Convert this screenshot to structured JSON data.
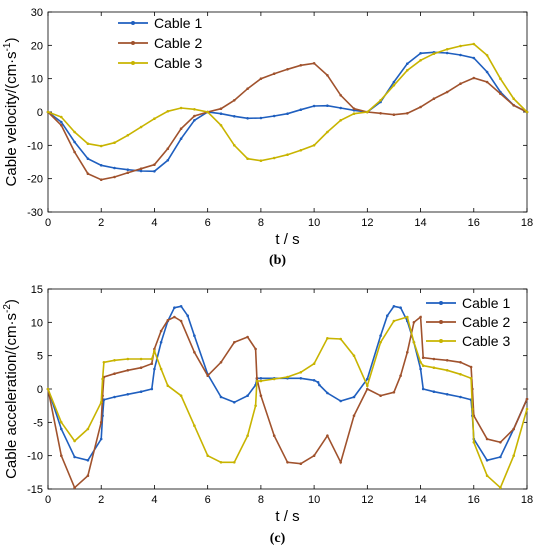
{
  "colors": {
    "cable1": "#1f5fbf",
    "cable2": "#a0522d",
    "cable3": "#c8b400"
  },
  "chart_data": [
    {
      "type": "line",
      "caption": "(b)",
      "xlabel": "t / s",
      "ylabel": "Cable velocity/(cm·s",
      "ylabel_sup": "-1",
      "ylabel_tail": ")",
      "xlim": [
        0,
        18
      ],
      "ylim": [
        -30,
        30
      ],
      "xticks": [
        0,
        2,
        4,
        6,
        8,
        10,
        12,
        14,
        16,
        18
      ],
      "yticks": [
        -30,
        -20,
        -10,
        0,
        10,
        20,
        30
      ],
      "legend_position": "top-left",
      "series": [
        {
          "name": "Cable 1",
          "color_key": "cable1",
          "x": [
            0,
            0.5,
            1,
            1.5,
            2,
            2.5,
            3,
            3.5,
            4,
            4.5,
            5,
            5.5,
            6,
            6.5,
            7,
            7.5,
            8,
            8.5,
            9,
            9.5,
            10,
            10.5,
            11,
            11.5,
            12,
            12.5,
            13,
            13.5,
            14,
            14.5,
            15,
            15.5,
            16,
            16.5,
            17,
            17.5,
            18
          ],
          "y": [
            0,
            -3,
            -9,
            -14,
            -16,
            -16.8,
            -17.3,
            -17.7,
            -17.8,
            -14.5,
            -8,
            -2.5,
            0,
            -0.5,
            -1.3,
            -1.9,
            -1.8,
            -1.2,
            -0.5,
            0.7,
            1.8,
            1.9,
            1.2,
            0.5,
            0,
            3,
            9,
            14.5,
            17.6,
            17.9,
            17.7,
            17.1,
            16.2,
            12,
            6,
            2,
            0
          ]
        },
        {
          "name": "Cable 2",
          "color_key": "cable2",
          "x": [
            0,
            0.5,
            1,
            1.5,
            2,
            2.5,
            3,
            3.5,
            4,
            4.5,
            5,
            5.5,
            6,
            6.5,
            7,
            7.5,
            8,
            8.5,
            9,
            9.5,
            10,
            10.5,
            11,
            11.5,
            12,
            12.5,
            13,
            13.5,
            14,
            14.5,
            15,
            15.5,
            16,
            16.5,
            17,
            17.5,
            18
          ],
          "y": [
            0,
            -4,
            -12,
            -18.5,
            -20.3,
            -19.5,
            -18.2,
            -17,
            -15.8,
            -11,
            -5,
            -1.2,
            0,
            1,
            3.5,
            7,
            10,
            11.5,
            12.8,
            14,
            14.6,
            11,
            5,
            1,
            0,
            -0.4,
            -0.8,
            -0.4,
            1.5,
            4,
            6,
            8.5,
            10.2,
            9,
            5.5,
            2,
            0
          ]
        },
        {
          "name": "Cable 3",
          "color_key": "cable3",
          "x": [
            0,
            0.5,
            1,
            1.5,
            2,
            2.5,
            3,
            3.5,
            4,
            4.5,
            5,
            5.5,
            6,
            6.5,
            7,
            7.5,
            8,
            8.5,
            9,
            9.5,
            10,
            10.5,
            11,
            11.5,
            12,
            12.5,
            13,
            13.5,
            14,
            14.5,
            15,
            15.5,
            16,
            16.5,
            17,
            17.5,
            18
          ],
          "y": [
            0,
            -1.5,
            -6,
            -9.5,
            -10.2,
            -9.2,
            -7,
            -4.5,
            -2,
            0.2,
            1.2,
            0.8,
            0,
            -4,
            -10,
            -14,
            -14.6,
            -13.8,
            -12.8,
            -11.5,
            -10,
            -6,
            -2.5,
            -0.5,
            0,
            3.5,
            8,
            12.5,
            15.5,
            17.5,
            18.8,
            19.8,
            20.4,
            17,
            10,
            4,
            0
          ]
        }
      ]
    },
    {
      "type": "line",
      "caption": "(c)",
      "xlabel": "t / s",
      "ylabel": "Cable acceleration/(cm·s",
      "ylabel_sup": "-2",
      "ylabel_tail": ")",
      "xlim": [
        0,
        18
      ],
      "ylim": [
        -15,
        15
      ],
      "xticks": [
        0,
        2,
        4,
        6,
        8,
        10,
        12,
        14,
        16,
        18
      ],
      "yticks": [
        -15,
        -10,
        -5,
        0,
        5,
        10,
        15
      ],
      "legend_position": "top-right",
      "series": [
        {
          "name": "Cable 1",
          "color_key": "cable1",
          "x": [
            0,
            0.5,
            1,
            1.5,
            2,
            2.05,
            2.1,
            2.5,
            3,
            3.5,
            3.9,
            4,
            4.25,
            4.5,
            4.75,
            5,
            5.25,
            5.5,
            6,
            6.5,
            7,
            7.5,
            7.8,
            7.85,
            8,
            8.5,
            9,
            9.5,
            10,
            10.15,
            10.2,
            10.5,
            11,
            11.5,
            12,
            12.5,
            12.75,
            13,
            13.25,
            13.5,
            13.75,
            14,
            14.1,
            14.5,
            15,
            15.5,
            15.9,
            15.95,
            16,
            16.5,
            17,
            17.5,
            18
          ],
          "y": [
            0,
            -6,
            -10.2,
            -10.7,
            -7.5,
            -4,
            -1.6,
            -1.2,
            -0.8,
            -0.4,
            0,
            3,
            7,
            10.2,
            12.2,
            12.4,
            11,
            8,
            2.2,
            -1.2,
            -2,
            -1,
            0.6,
            1.6,
            1.6,
            1.6,
            1.6,
            1.6,
            1.3,
            1,
            0.6,
            -0.6,
            -1.8,
            -1.2,
            1.5,
            8,
            11,
            12.4,
            12.2,
            10.2,
            7,
            3,
            0,
            -0.4,
            -0.8,
            -1.2,
            -1.6,
            -4,
            -7.5,
            -10.7,
            -10.2,
            -6,
            -1.5
          ]
        },
        {
          "name": "Cable 2",
          "color_key": "cable2",
          "x": [
            0,
            0.5,
            1,
            1.5,
            2,
            2.05,
            2.1,
            2.5,
            3,
            3.5,
            3.9,
            4,
            4.25,
            4.5,
            4.75,
            5,
            5.5,
            6,
            6.5,
            7,
            7.5,
            7.8,
            7.85,
            8,
            8.5,
            9,
            9.5,
            10,
            10.5,
            11,
            11.5,
            12,
            12.5,
            13,
            13.25,
            13.5,
            13.75,
            14,
            14.1,
            14.5,
            15,
            15.5,
            15.9,
            15.95,
            16,
            16.5,
            17,
            17.5,
            18
          ],
          "y": [
            0,
            -10,
            -14.8,
            -13,
            -5,
            -1,
            1.8,
            2.3,
            2.8,
            3.2,
            3.8,
            6,
            8.7,
            10.3,
            10.8,
            10.2,
            5.5,
            2,
            4,
            7,
            7.8,
            6,
            1.6,
            -1,
            -7,
            -11,
            -11.2,
            -10,
            -7,
            -11,
            -4,
            0,
            -1,
            -0.5,
            2,
            5.5,
            10,
            10.8,
            4.7,
            4.5,
            4.3,
            4,
            3.3,
            0,
            -4,
            -7.5,
            -8,
            -6,
            -1.5
          ]
        },
        {
          "name": "Cable 3",
          "color_key": "cable3",
          "x": [
            0,
            0.5,
            1,
            1.5,
            2,
            2.05,
            2.1,
            2.5,
            3,
            3.5,
            3.9,
            4,
            4.25,
            4.5,
            5,
            5.5,
            6,
            6.5,
            7,
            7.5,
            7.8,
            7.85,
            8,
            8.5,
            9,
            9.5,
            10,
            10.5,
            11,
            11.5,
            12,
            12.5,
            13,
            13.5,
            13.75,
            14,
            14.1,
            14.5,
            15,
            15.5,
            15.9,
            15.95,
            16,
            16.5,
            17,
            17.5,
            18
          ],
          "y": [
            0,
            -5,
            -7.8,
            -6,
            -2,
            1.5,
            4,
            4.3,
            4.5,
            4.5,
            4.5,
            5.7,
            3,
            0.5,
            -1,
            -5.5,
            -10,
            -11,
            -11,
            -7,
            -2.5,
            1.2,
            1.2,
            1.5,
            1.8,
            2.5,
            3.8,
            7.6,
            7.5,
            5,
            0.5,
            7,
            10.2,
            10.8,
            7,
            4,
            3.5,
            3.2,
            2.8,
            2.2,
            1.6,
            -3,
            -8,
            -13,
            -14.8,
            -10,
            -3
          ]
        }
      ]
    }
  ]
}
